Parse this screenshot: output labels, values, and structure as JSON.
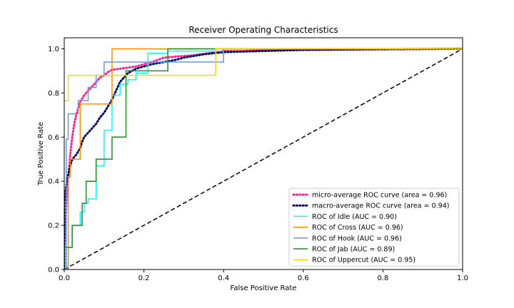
{
  "chart_data": {
    "type": "line",
    "title": "Receiver Operating Characteristics",
    "xlabel": "False Positive Rate",
    "ylabel": "True Positive Rate",
    "xlim": [
      0,
      1
    ],
    "ylim": [
      0,
      1.05
    ],
    "xticks": [
      0,
      0.2,
      0.4,
      0.6,
      0.8,
      1.0
    ],
    "xtick_labels": [
      "0.0",
      "0.2",
      "0.4",
      "0.6",
      "0.8",
      "1.0"
    ],
    "yticks": [
      0,
      0.2,
      0.4,
      0.6,
      0.8,
      1.0
    ],
    "ytick_labels": [
      "0.0",
      "0.2",
      "0.4",
      "0.6",
      "0.8",
      "1.0"
    ],
    "grid": false,
    "legend_position": "lower-right",
    "series": [
      {
        "name": "micro-average ROC curve (area = 0.96)",
        "color": "#ff1f8e",
        "style": "dotted",
        "x": [
          0,
          0,
          0.003,
          0.006,
          0.01,
          0.015,
          0.02,
          0.025,
          0.03,
          0.035,
          0.04,
          0.05,
          0.06,
          0.07,
          0.08,
          0.09,
          0.1,
          0.11,
          0.12,
          0.14,
          0.16,
          0.18,
          0.2,
          0.22,
          0.25,
          0.28,
          0.32,
          0.36,
          0.4,
          0.45,
          0.5,
          0.6,
          0.7,
          0.8,
          0.9,
          1.0
        ],
        "y": [
          0,
          0.1,
          0.22,
          0.32,
          0.42,
          0.52,
          0.6,
          0.66,
          0.7,
          0.73,
          0.76,
          0.79,
          0.81,
          0.83,
          0.85,
          0.87,
          0.88,
          0.895,
          0.905,
          0.91,
          0.915,
          0.92,
          0.93,
          0.94,
          0.96,
          0.965,
          0.97,
          0.98,
          0.99,
          0.99,
          0.995,
          0.995,
          0.997,
          0.998,
          0.999,
          1.0
        ]
      },
      {
        "name": "macro-average ROC curve (area = 0.94)",
        "color": "#000066",
        "style": "dotted",
        "x": [
          0,
          0,
          0.005,
          0.01,
          0.015,
          0.02,
          0.03,
          0.04,
          0.045,
          0.05,
          0.06,
          0.07,
          0.08,
          0.09,
          0.1,
          0.11,
          0.12,
          0.13,
          0.14,
          0.15,
          0.16,
          0.18,
          0.2,
          0.22,
          0.25,
          0.28,
          0.3,
          0.35,
          0.4,
          0.5,
          0.6,
          0.8,
          1.0
        ],
        "y": [
          0,
          0.3,
          0.38,
          0.43,
          0.47,
          0.5,
          0.52,
          0.55,
          0.58,
          0.6,
          0.62,
          0.64,
          0.66,
          0.69,
          0.71,
          0.74,
          0.77,
          0.81,
          0.85,
          0.87,
          0.89,
          0.91,
          0.92,
          0.93,
          0.94,
          0.95,
          0.96,
          0.975,
          0.985,
          0.99,
          0.995,
          0.998,
          1.0
        ]
      },
      {
        "name": "ROC of Idle (AUC = 0.90)",
        "color": "#00ffff",
        "style": "solid",
        "x": [
          0,
          0.01,
          0.01,
          0.02,
          0.02,
          0.04,
          0.04,
          0.05,
          0.05,
          0.06,
          0.06,
          0.08,
          0.08,
          0.1,
          0.1,
          0.12,
          0.12,
          0.14,
          0.14,
          0.16,
          0.16,
          0.18,
          0.18,
          0.21,
          0.21,
          0.24,
          0.24,
          0.26,
          0.26,
          0.4,
          0.4,
          1.0
        ],
        "y": [
          0,
          0,
          0.1,
          0.1,
          0.2,
          0.2,
          0.26,
          0.26,
          0.3,
          0.3,
          0.32,
          0.32,
          0.47,
          0.47,
          0.63,
          0.63,
          0.79,
          0.79,
          0.84,
          0.84,
          0.86,
          0.86,
          0.89,
          0.89,
          0.98,
          0.98,
          0.98,
          0.98,
          0.99,
          0.99,
          1.0,
          1.0
        ]
      },
      {
        "name": "ROC of Cross (AUC = 0.96)",
        "color": "#ff8c00",
        "style": "solid",
        "x": [
          0,
          0.01,
          0.01,
          0.015,
          0.015,
          0.04,
          0.04,
          0.12,
          0.12,
          0.2,
          0.2,
          1.0
        ],
        "y": [
          0,
          0,
          0.42,
          0.42,
          0.5,
          0.5,
          0.75,
          0.75,
          1.0,
          1.0,
          1.0,
          1.0
        ]
      },
      {
        "name": "ROC of Hook (AUC = 0.96)",
        "color": "#6495ed",
        "style": "solid",
        "x": [
          0,
          0.005,
          0.005,
          0.01,
          0.01,
          0.035,
          0.035,
          0.06,
          0.06,
          0.08,
          0.08,
          0.1,
          0.1,
          0.2,
          0.2,
          0.4,
          0.4,
          1.0
        ],
        "y": [
          0,
          0,
          0.59,
          0.59,
          0.705,
          0.705,
          0.765,
          0.765,
          0.825,
          0.825,
          0.88,
          0.88,
          0.94,
          0.94,
          0.94,
          0.94,
          1.0,
          1.0
        ]
      },
      {
        "name": "ROC of Jab (AUC = 0.89)",
        "color": "#228b22",
        "style": "solid",
        "x": [
          0,
          0,
          0.02,
          0.02,
          0.045,
          0.045,
          0.055,
          0.055,
          0.08,
          0.08,
          0.12,
          0.12,
          0.155,
          0.155,
          0.26,
          0.26,
          0.38,
          0.38,
          1.0
        ],
        "y": [
          0,
          0.1,
          0.1,
          0.2,
          0.2,
          0.3,
          0.3,
          0.4,
          0.4,
          0.5,
          0.5,
          0.6,
          0.6,
          0.9,
          0.9,
          1.0,
          1.0,
          1.0,
          1.0
        ]
      },
      {
        "name": "ROC of Uppercut (AUC = 0.95)",
        "color": "#ffd700",
        "style": "solid",
        "x": [
          0,
          0.01,
          0.01,
          0.38,
          0.38,
          1.0
        ],
        "y": [
          0.765,
          0.765,
          0.88,
          0.88,
          1.0,
          1.0
        ]
      }
    ],
    "reference_line": {
      "color": "#000000",
      "style": "dashed",
      "x": [
        0,
        1
      ],
      "y": [
        0,
        1
      ]
    }
  }
}
